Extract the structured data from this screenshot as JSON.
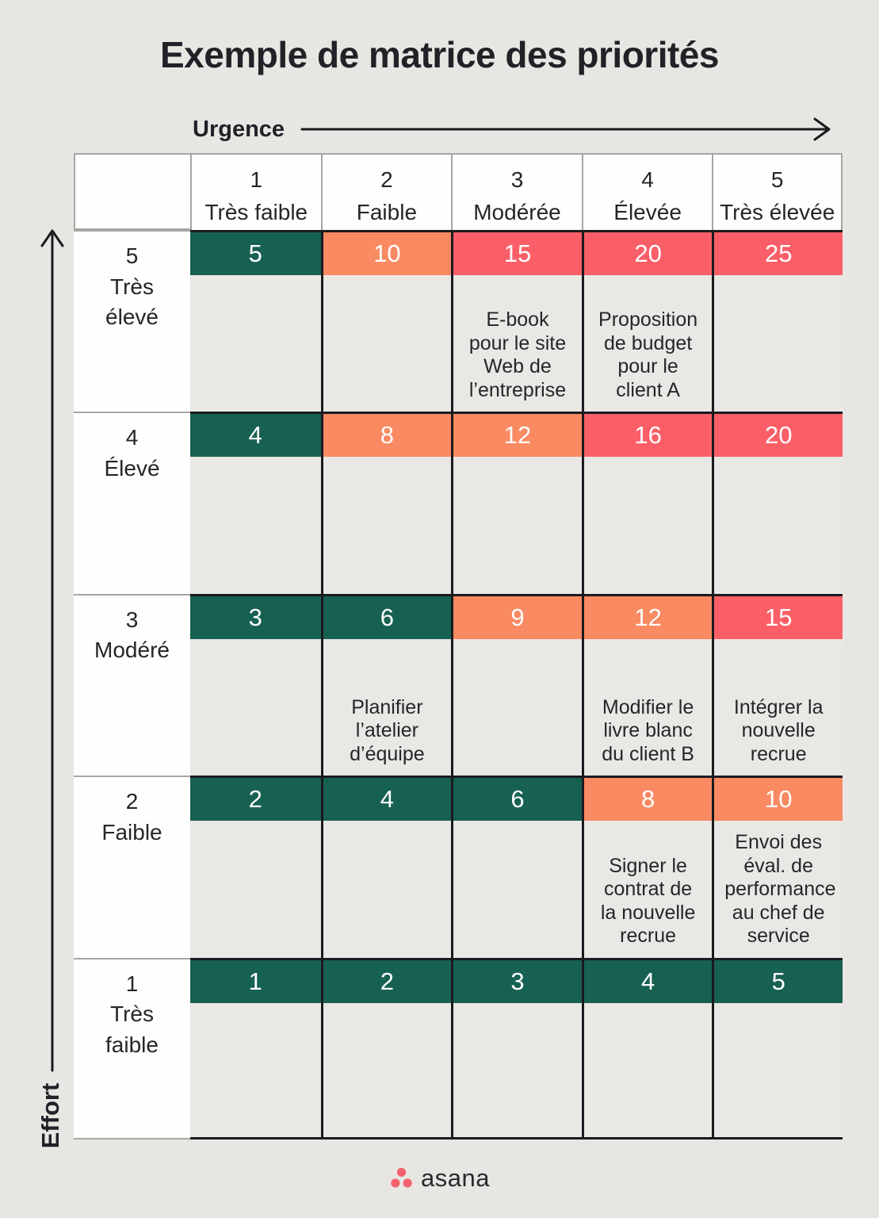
{
  "title": "Exemple de matrice des priorités",
  "axes": {
    "x": "Urgence",
    "y": "Effort"
  },
  "footer": {
    "logo": "asana"
  },
  "colors": {
    "green": "#176152",
    "orange": "#f98a62",
    "red": "#fa5f68",
    "coral": "#f4616d"
  },
  "matrix": {
    "columns": [
      {
        "num": "1",
        "label": "Très faible"
      },
      {
        "num": "2",
        "label": "Faible"
      },
      {
        "num": "3",
        "label": "Modérée"
      },
      {
        "num": "4",
        "label": "Élevée"
      },
      {
        "num": "5",
        "label": "Très élevée"
      }
    ],
    "rows": [
      {
        "num": "5",
        "label": "Très élevé",
        "cells": [
          {
            "value": "5",
            "color": "green",
            "task": ""
          },
          {
            "value": "10",
            "color": "orange",
            "task": ""
          },
          {
            "value": "15",
            "color": "red",
            "task": "E-book pour le site Web de l’entreprise"
          },
          {
            "value": "20",
            "color": "red",
            "task": "Proposition de budget pour le client A"
          },
          {
            "value": "25",
            "color": "red",
            "task": ""
          }
        ]
      },
      {
        "num": "4",
        "label": "Élevé",
        "cells": [
          {
            "value": "4",
            "color": "green",
            "task": ""
          },
          {
            "value": "8",
            "color": "orange",
            "task": ""
          },
          {
            "value": "12",
            "color": "orange",
            "task": ""
          },
          {
            "value": "16",
            "color": "red",
            "task": ""
          },
          {
            "value": "20",
            "color": "red",
            "task": ""
          }
        ]
      },
      {
        "num": "3",
        "label": "Modéré",
        "cells": [
          {
            "value": "3",
            "color": "green",
            "task": ""
          },
          {
            "value": "6",
            "color": "green",
            "task": "Planifier l’atelier d’équipe"
          },
          {
            "value": "9",
            "color": "orange",
            "task": ""
          },
          {
            "value": "12",
            "color": "orange",
            "task": "Modifier le livre blanc du client B"
          },
          {
            "value": "15",
            "color": "red",
            "task": "Intégrer la nouvelle recrue"
          }
        ]
      },
      {
        "num": "2",
        "label": "Faible",
        "cells": [
          {
            "value": "2",
            "color": "green",
            "task": ""
          },
          {
            "value": "4",
            "color": "green",
            "task": ""
          },
          {
            "value": "6",
            "color": "green",
            "task": ""
          },
          {
            "value": "8",
            "color": "orange",
            "task": "Signer le contrat de la nouvelle recrue"
          },
          {
            "value": "10",
            "color": "orange",
            "task": "Envoi des éval. de performance au chef de service"
          }
        ]
      },
      {
        "num": "1",
        "label": "Très faible",
        "cells": [
          {
            "value": "1",
            "color": "green",
            "task": ""
          },
          {
            "value": "2",
            "color": "green",
            "task": ""
          },
          {
            "value": "3",
            "color": "green",
            "task": ""
          },
          {
            "value": "4",
            "color": "green",
            "task": ""
          },
          {
            "value": "5",
            "color": "green",
            "task": ""
          }
        ]
      }
    ]
  }
}
